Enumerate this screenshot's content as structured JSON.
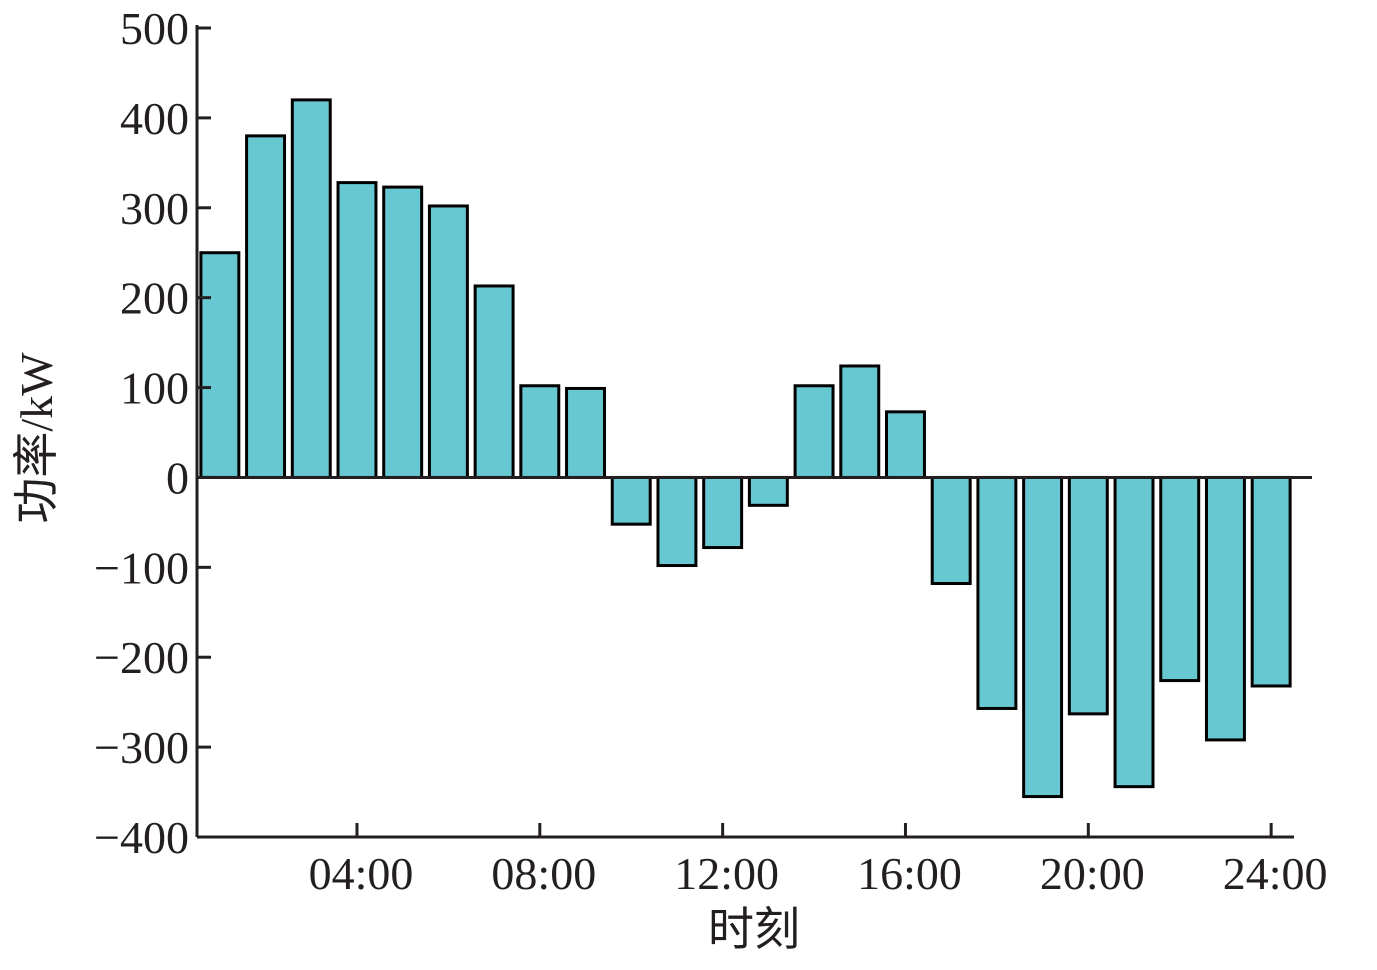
{
  "chart_data": {
    "type": "bar",
    "title": "",
    "xlabel": "时刻",
    "ylabel": "功率/kW",
    "ylim": [
      -400,
      500
    ],
    "yticks": [
      500,
      400,
      300,
      200,
      100,
      0,
      -100,
      -200,
      -300,
      -400
    ],
    "ytick_labels": [
      "500",
      "400",
      "300",
      "200",
      "100",
      "0",
      "−100",
      "−200",
      "−300",
      "−400"
    ],
    "xlim": [
      0.5,
      24.5
    ],
    "xticks": [
      4,
      8,
      12,
      16,
      20,
      24
    ],
    "xtick_labels": [
      "04:00",
      "08:00",
      "12:00",
      "16:00",
      "20:00",
      "24:00"
    ],
    "x": [
      1,
      2,
      3,
      4,
      5,
      6,
      7,
      8,
      9,
      10,
      11,
      12,
      13,
      14,
      15,
      16,
      17,
      18,
      19,
      20,
      21,
      22,
      23,
      24
    ],
    "values": [
      250,
      380,
      420,
      328,
      323,
      302,
      213,
      102,
      99,
      -52,
      -98,
      -78,
      -31,
      102,
      124,
      73,
      -118,
      -257,
      -355,
      -263,
      -344,
      -226,
      -292,
      -232
    ],
    "grid": false,
    "bar_color": "#68c8d2",
    "edge_color": "#000000"
  }
}
